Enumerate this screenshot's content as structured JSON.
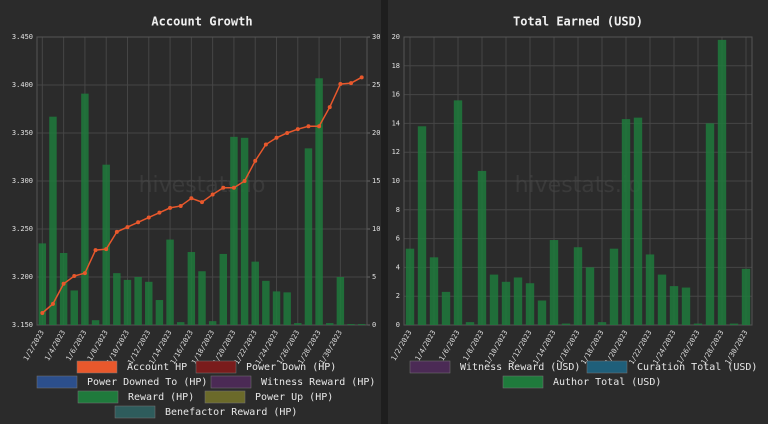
{
  "chart_data": [
    {
      "type": "combo",
      "title": "Account Growth",
      "watermark": "hivestats.io",
      "categories": [
        "1/2/2023",
        null,
        "1/4/2023",
        null,
        "1/6/2023",
        null,
        "1/8/2023",
        null,
        "1/10/2023",
        null,
        "1/12/2023",
        null,
        "1/14/2023",
        null,
        "1/16/2023",
        null,
        "1/18/2023",
        null,
        "1/20/2023",
        null,
        "1/22/2023",
        null,
        "1/24/2023",
        null,
        "1/26/2023",
        null,
        "1/28/2023",
        null,
        "1/30/2023",
        null,
        null
      ],
      "ylim": [
        3.15,
        3.45
      ],
      "yticks": [
        {
          "value": 3.15,
          "label": "3.150"
        },
        {
          "value": 3.2,
          "label": "3.200"
        },
        {
          "value": 3.25,
          "label": "3.250"
        },
        {
          "value": 3.3,
          "label": "3.300"
        },
        {
          "value": 3.35,
          "label": "3.350"
        },
        {
          "value": 3.4,
          "label": "3.400"
        },
        {
          "value": 3.45,
          "label": "3.450"
        }
      ],
      "y2lim": [
        0,
        30
      ],
      "y2ticks": [
        0,
        5,
        10,
        15,
        20,
        25,
        30
      ],
      "grid": true,
      "series": [
        {
          "name": "Account HP",
          "color": "#e8582c",
          "type": "line",
          "values": [
            3.1625,
            3.172,
            3.193,
            3.201,
            3.204,
            3.228,
            3.229,
            3.247,
            3.252,
            3.257,
            3.262,
            3.267,
            3.272,
            3.274,
            3.282,
            3.278,
            3.286,
            3.293,
            3.293,
            3.3,
            3.321,
            3.338,
            3.345,
            3.35,
            3.354,
            3.357,
            3.357,
            3.377,
            3.401,
            3.402,
            3.408
          ]
        },
        {
          "name": "Power Down (HP)",
          "color": "#7a1c1c"
        },
        {
          "name": "Power Downed To (HP)",
          "color": "#2c4f8c"
        },
        {
          "name": "Witness Reward (HP)",
          "color": "#4b2a55"
        },
        {
          "name": "Reward (HP)",
          "color": "#1f7a3c",
          "type": "bar",
          "axis": "y2",
          "values": [
            8.5,
            21.7,
            7.5,
            3.6,
            24.1,
            0.5,
            16.7,
            5.4,
            4.7,
            5,
            4.5,
            2.6,
            8.9,
            0.3,
            7.6,
            5.6,
            0.4,
            7.4,
            19.6,
            19.5,
            6.6,
            4.6,
            3.5,
            3.4,
            0.2,
            18.4,
            25.7,
            0.2,
            5,
            0.1,
            0.1
          ]
        },
        {
          "name": "Power Up (HP)",
          "color": "#6b6a2a"
        },
        {
          "name": "Benefactor Reward (HP)",
          "color": "#2e5c5c"
        }
      ]
    },
    {
      "type": "bar",
      "title": "Total Earned (USD)",
      "watermark": "hivestats.io",
      "categories": [
        "1/2/2023",
        null,
        "1/4/2023",
        null,
        "1/6/2023",
        null,
        "1/8/2023",
        null,
        "1/10/2023",
        null,
        "1/12/2023",
        null,
        "1/14/2023",
        null,
        "1/16/2023",
        null,
        "1/18/2023",
        null,
        "1/20/2023",
        null,
        "1/22/2023",
        null,
        "1/24/2023",
        null,
        "1/26/2023",
        null,
        "1/28/2023",
        null,
        "1/30/2023"
      ],
      "ylim": [
        0,
        20
      ],
      "yticks": [
        0,
        2,
        4,
        6,
        8,
        10,
        12,
        14,
        16,
        18,
        20
      ],
      "grid": true,
      "series": [
        {
          "name": "Witness Reward (USD)",
          "color": "#4b2a55"
        },
        {
          "name": "Curation Total (USD)",
          "color": "#1f5f7a"
        },
        {
          "name": "Author Total (USD)",
          "color": "#1f7a3c",
          "values": [
            5.3,
            13.8,
            4.7,
            2.3,
            15.6,
            0.2,
            10.7,
            3.5,
            3,
            3.3,
            2.9,
            1.7,
            5.9,
            0.1,
            5.4,
            4,
            0.2,
            5.3,
            14.3,
            14.4,
            4.9,
            3.5,
            2.7,
            2.6,
            0.1,
            14,
            19.8,
            0.1,
            3.9
          ]
        }
      ]
    }
  ]
}
